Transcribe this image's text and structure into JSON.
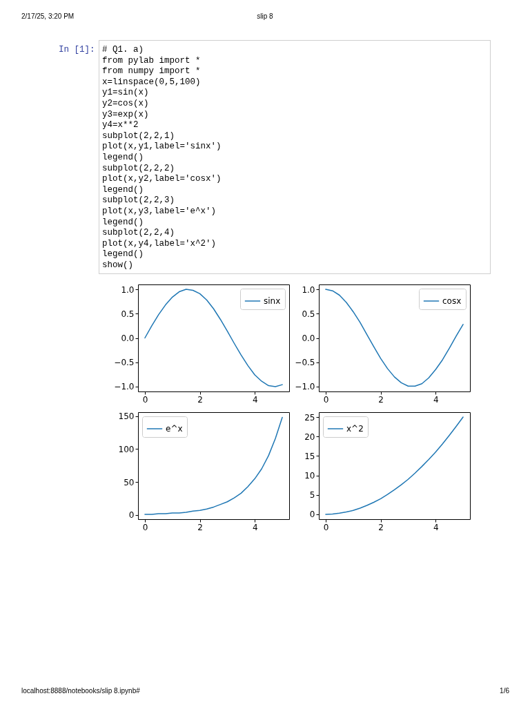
{
  "chart_data": [
    {
      "type": "line",
      "x": [
        0,
        0.25,
        0.5,
        0.75,
        1,
        1.25,
        1.5,
        1.75,
        2,
        2.25,
        2.5,
        2.75,
        3,
        3.25,
        3.5,
        3.75,
        4,
        4.25,
        4.5,
        4.75,
        5
      ],
      "series": [
        {
          "name": "sinx",
          "color": "#1f77b4",
          "values": [
            0,
            0.25,
            0.48,
            0.68,
            0.84,
            0.95,
            1.0,
            0.98,
            0.91,
            0.78,
            0.6,
            0.38,
            0.14,
            -0.11,
            -0.35,
            -0.57,
            -0.76,
            -0.89,
            -0.98,
            -1.0,
            -0.96
          ]
        }
      ],
      "xlim": [
        -0.25,
        5.25
      ],
      "xticks": [
        0,
        2,
        4
      ],
      "ylim": [
        -1.1,
        1.1
      ],
      "yticks": [
        {
          "value": -1,
          "label": "−1.0"
        },
        {
          "value": -0.5,
          "label": "−0.5"
        },
        {
          "value": 0,
          "label": "0.0"
        },
        {
          "value": 0.5,
          "label": "0.5"
        },
        {
          "value": 1,
          "label": "1.0"
        }
      ],
      "legend": "top right",
      "grid": false,
      "marker": "none",
      "line_style": "solid",
      "annotations": [
        "2/17/25, 3:20 PM",
        "slip 8",
        "localhost:8888/notebooks/slip 8.ipynb#",
        "1/6",
        "In [1]:",
        "# Q1. a)",
        "from pylab import *",
        "from numpy import *",
        "x=linspace(0,5,100)",
        "y1=sin(x)",
        "y2=cos(x)",
        "y3=exp(x)",
        "y4=x**2",
        "subplot(2,2,1)",
        "plot(x,y1,label='sinx')",
        "legend()",
        "subplot(2,2,2)",
        "plot(x,y2,label='cosx')",
        "legend()",
        "subplot(2,2,3)",
        "plot(x,y3,label='e^x')",
        "legend()",
        "subplot(2,2,4)",
        "plot(x,y4,label='x^2')",
        "legend()",
        "show()"
      ]
    },
    {
      "type": "line",
      "x": [
        0,
        0.25,
        0.5,
        0.75,
        1,
        1.25,
        1.5,
        1.75,
        2,
        2.25,
        2.5,
        2.75,
        3,
        3.25,
        3.5,
        3.75,
        4,
        4.25,
        4.5,
        4.75,
        5
      ],
      "series": [
        {
          "name": "cosx",
          "color": "#1f77b4",
          "values": [
            1,
            0.97,
            0.88,
            0.73,
            0.54,
            0.32,
            0.07,
            -0.18,
            -0.42,
            -0.63,
            -0.8,
            -0.92,
            -0.99,
            -0.99,
            -0.94,
            -0.82,
            -0.65,
            -0.45,
            -0.21,
            0.04,
            0.28
          ]
        }
      ],
      "xlim": [
        -0.25,
        5.25
      ],
      "xticks": [
        0,
        2,
        4
      ],
      "ylim": [
        -1.1,
        1.1
      ],
      "yticks": [
        {
          "value": -1,
          "label": "−1.0"
        },
        {
          "value": -0.5,
          "label": "−0.5"
        },
        {
          "value": 0,
          "label": "0.0"
        },
        {
          "value": 0.5,
          "label": "0.5"
        },
        {
          "value": 1,
          "label": "1.0"
        }
      ],
      "legend": "top right",
      "grid": false,
      "marker": "none",
      "line_style": "solid"
    },
    {
      "type": "line",
      "x": [
        0,
        0.25,
        0.5,
        0.75,
        1,
        1.25,
        1.5,
        1.75,
        2,
        2.25,
        2.5,
        2.75,
        3,
        3.25,
        3.5,
        3.75,
        4,
        4.25,
        4.5,
        4.75,
        5
      ],
      "series": [
        {
          "name": "e^x",
          "color": "#1f77b4",
          "values": [
            1,
            1,
            2,
            2,
            3,
            3,
            4,
            6,
            7,
            9,
            12,
            16,
            20,
            26,
            33,
            43,
            55,
            70,
            90,
            116,
            148
          ]
        }
      ],
      "xlim": [
        -0.25,
        5.25
      ],
      "xticks": [
        0,
        2,
        4
      ],
      "ylim": [
        -6.4,
        155.8
      ],
      "yticks": [
        0,
        50,
        100,
        150
      ],
      "legend": "top left",
      "grid": false,
      "marker": "none",
      "line_style": "solid"
    },
    {
      "type": "line",
      "x": [
        0,
        0.25,
        0.5,
        0.75,
        1,
        1.25,
        1.5,
        1.75,
        2,
        2.25,
        2.5,
        2.75,
        3,
        3.25,
        3.5,
        3.75,
        4,
        4.25,
        4.5,
        4.75,
        5
      ],
      "series": [
        {
          "name": "x^2",
          "color": "#1f77b4",
          "values": [
            0,
            0.1,
            0.3,
            0.6,
            1,
            1.6,
            2.3,
            3.1,
            4,
            5.1,
            6.3,
            7.6,
            9,
            10.6,
            12.3,
            14.1,
            16,
            18.1,
            20.3,
            22.6,
            25
          ]
        }
      ],
      "xlim": [
        -0.25,
        5.25
      ],
      "xticks": [
        0,
        2,
        4
      ],
      "ylim": [
        -1.25,
        26.25
      ],
      "yticks": [
        0,
        5,
        10,
        15,
        20,
        25
      ],
      "legend": "top left",
      "grid": false,
      "marker": "none",
      "line_style": "solid"
    }
  ]
}
